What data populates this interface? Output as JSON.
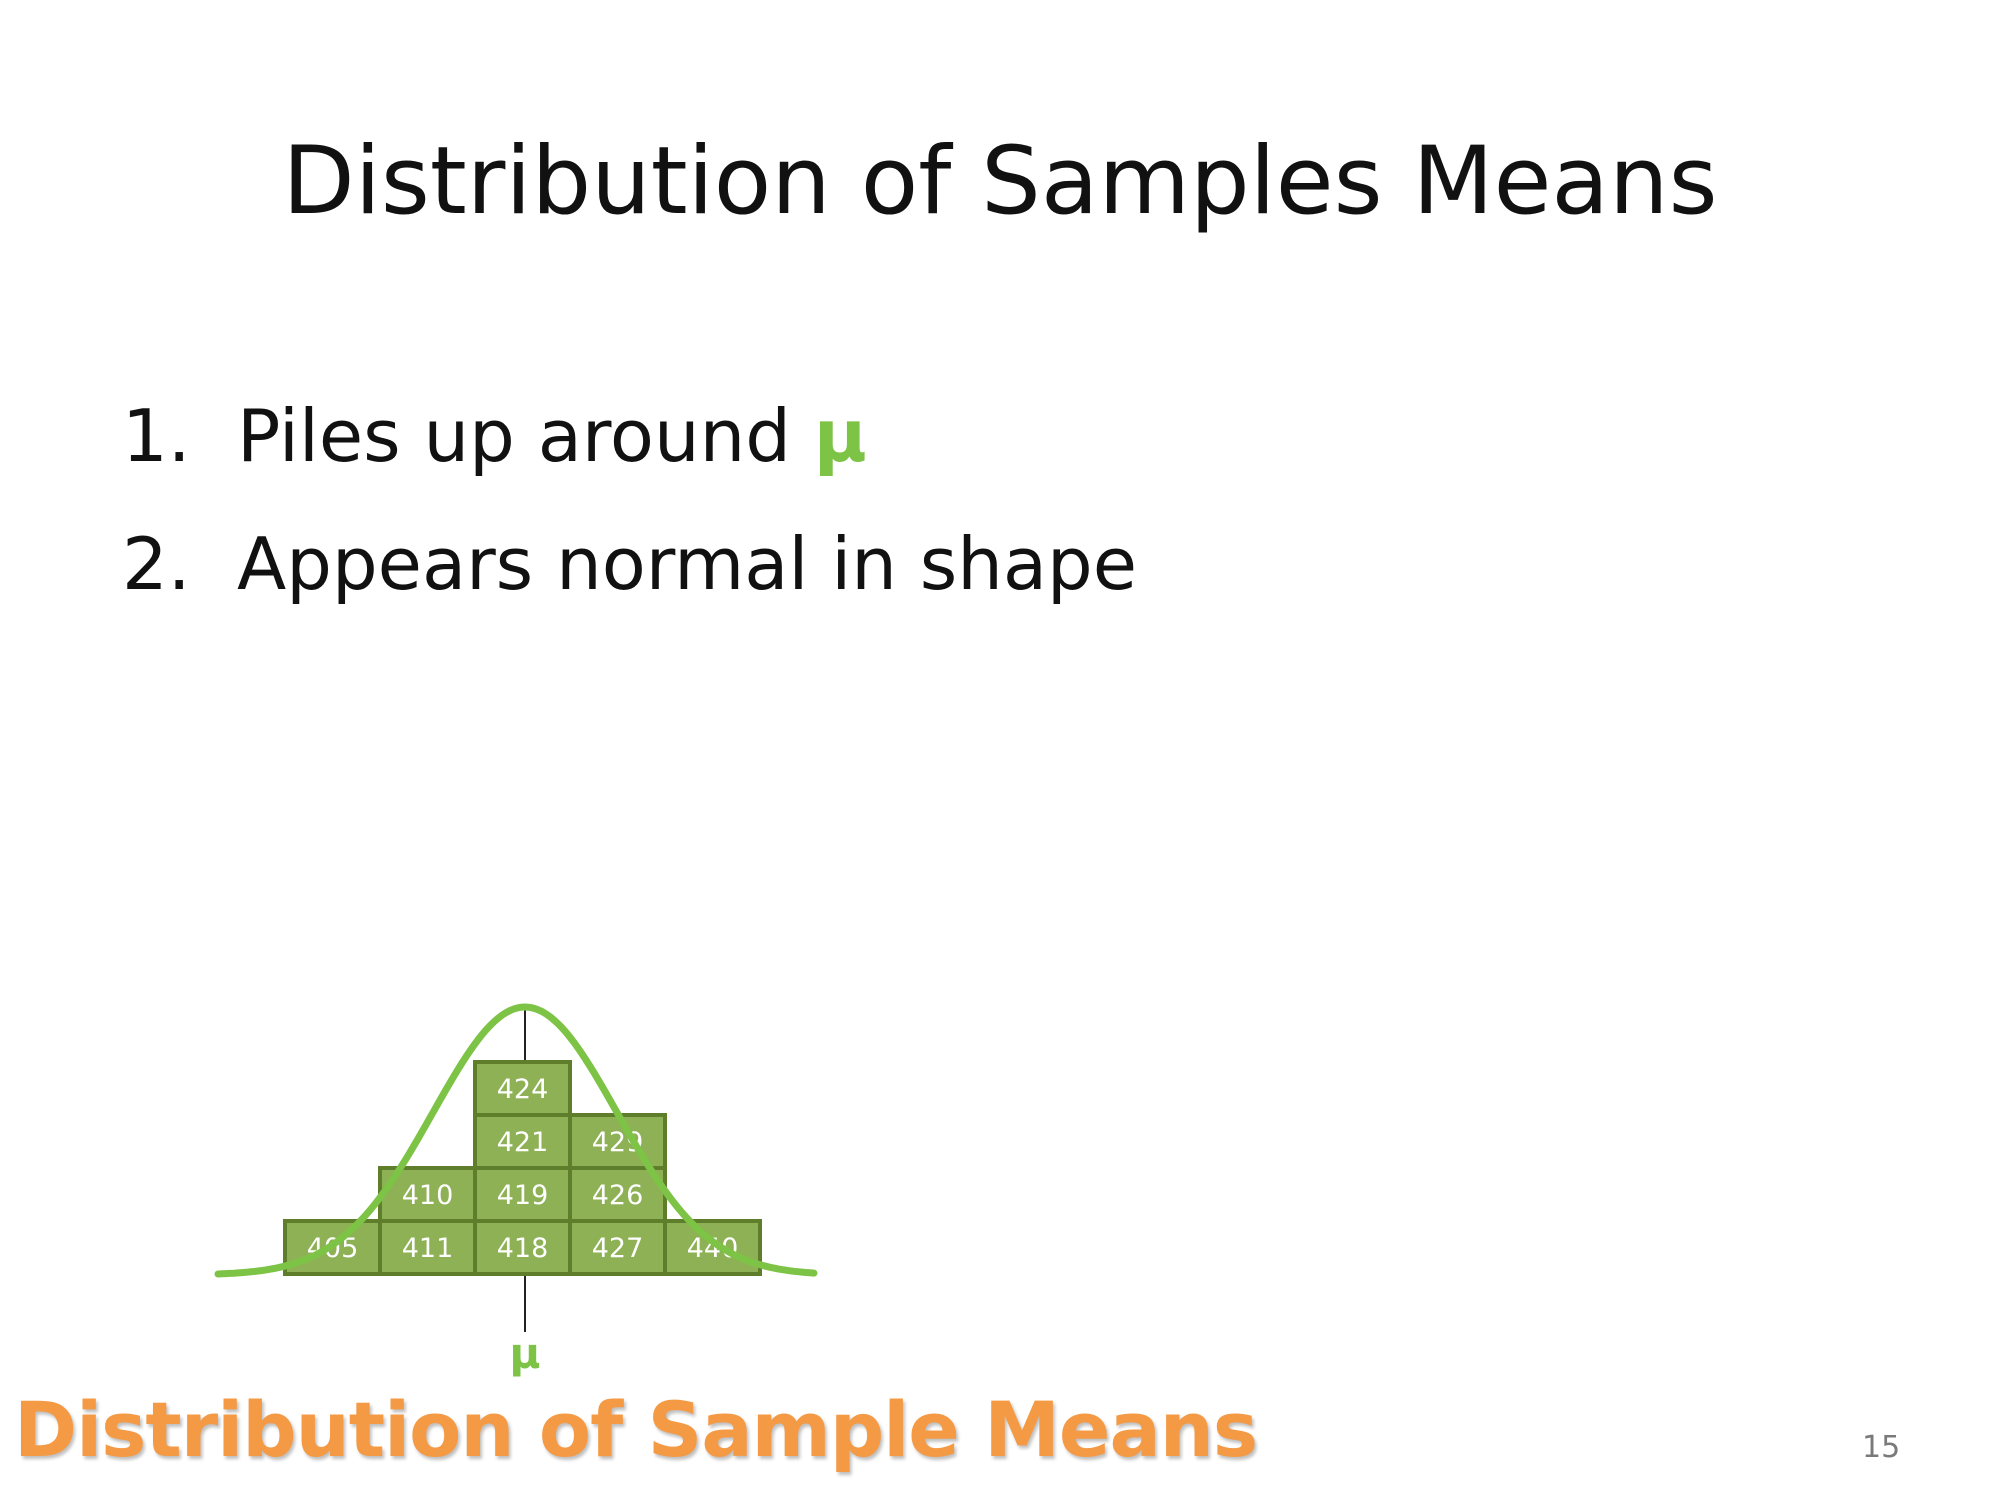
{
  "slide": {
    "title": "Distribution of Samples Means",
    "bullets": [
      {
        "number": "1.",
        "text": "Piles up around ",
        "symbol": "μ"
      },
      {
        "number": "2.",
        "text": "Appears normal in shape"
      }
    ],
    "page_number": "15"
  },
  "figure": {
    "caption": "Distribution of Sample Means",
    "mu_label": "μ",
    "colors": {
      "block_fill": "#8db154",
      "block_border": "#5f7e2c",
      "curve": "#7dc346",
      "caption": "#f59a44"
    },
    "columns": [
      {
        "values": [
          "405"
        ]
      },
      {
        "values": [
          "411",
          "410"
        ]
      },
      {
        "values": [
          "418",
          "419",
          "421",
          "424"
        ]
      },
      {
        "values": [
          "427",
          "426",
          "429"
        ]
      },
      {
        "values": [
          "440"
        ]
      }
    ]
  }
}
